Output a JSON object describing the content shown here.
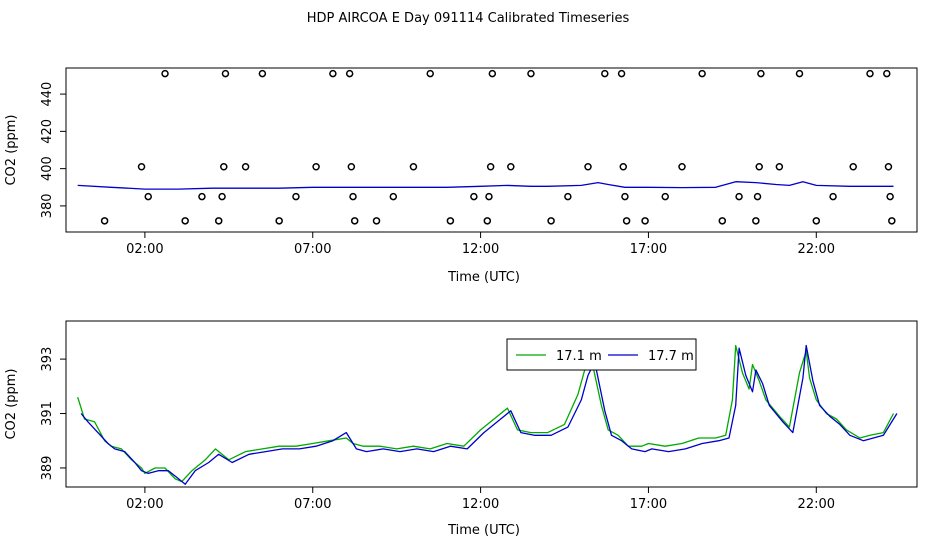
{
  "title": "HDP AIRCOA E  Day 091114  Calibrated Timeseries",
  "chart_data": [
    {
      "type": "scatter",
      "xlabel": "Time (UTC)",
      "ylabel": "CO2 (ppm)",
      "x_ticks": [
        "02:00",
        "07:00",
        "12:00",
        "17:00",
        "22:00"
      ],
      "y_ticks": [
        380,
        400,
        420,
        440
      ],
      "xlim": [
        -0.35,
        25.0
      ],
      "ylim": [
        366,
        454
      ],
      "calibration_points": [
        {
          "x": 0.8,
          "y": 372
        },
        {
          "x": 1.9,
          "y": 401
        },
        {
          "x": 2.1,
          "y": 385
        },
        {
          "x": 2.6,
          "y": 451
        },
        {
          "x": 3.2,
          "y": 372
        },
        {
          "x": 3.7,
          "y": 385
        },
        {
          "x": 4.2,
          "y": 372
        },
        {
          "x": 4.3,
          "y": 385
        },
        {
          "x": 4.35,
          "y": 401
        },
        {
          "x": 4.4,
          "y": 451
        },
        {
          "x": 5.0,
          "y": 401
        },
        {
          "x": 5.5,
          "y": 451
        },
        {
          "x": 6.0,
          "y": 372
        },
        {
          "x": 6.5,
          "y": 385
        },
        {
          "x": 7.1,
          "y": 401
        },
        {
          "x": 7.6,
          "y": 451
        },
        {
          "x": 8.1,
          "y": 451
        },
        {
          "x": 8.15,
          "y": 401
        },
        {
          "x": 8.2,
          "y": 385
        },
        {
          "x": 8.25,
          "y": 372
        },
        {
          "x": 8.9,
          "y": 372
        },
        {
          "x": 9.4,
          "y": 385
        },
        {
          "x": 10.0,
          "y": 401
        },
        {
          "x": 10.5,
          "y": 451
        },
        {
          "x": 11.1,
          "y": 372
        },
        {
          "x": 11.8,
          "y": 385
        },
        {
          "x": 12.2,
          "y": 372
        },
        {
          "x": 12.25,
          "y": 385
        },
        {
          "x": 12.3,
          "y": 401
        },
        {
          "x": 12.35,
          "y": 451
        },
        {
          "x": 12.9,
          "y": 401
        },
        {
          "x": 13.5,
          "y": 451
        },
        {
          "x": 14.1,
          "y": 372
        },
        {
          "x": 14.6,
          "y": 385
        },
        {
          "x": 15.2,
          "y": 401
        },
        {
          "x": 15.7,
          "y": 451
        },
        {
          "x": 16.2,
          "y": 451
        },
        {
          "x": 16.25,
          "y": 401
        },
        {
          "x": 16.3,
          "y": 385
        },
        {
          "x": 16.35,
          "y": 372
        },
        {
          "x": 16.9,
          "y": 372
        },
        {
          "x": 17.5,
          "y": 385
        },
        {
          "x": 18.0,
          "y": 401
        },
        {
          "x": 18.6,
          "y": 451
        },
        {
          "x": 19.2,
          "y": 372
        },
        {
          "x": 19.7,
          "y": 385
        },
        {
          "x": 20.2,
          "y": 372
        },
        {
          "x": 20.25,
          "y": 385
        },
        {
          "x": 20.3,
          "y": 401
        },
        {
          "x": 20.35,
          "y": 451
        },
        {
          "x": 20.9,
          "y": 401
        },
        {
          "x": 21.5,
          "y": 451
        },
        {
          "x": 22.0,
          "y": 372
        },
        {
          "x": 22.5,
          "y": 385
        },
        {
          "x": 23.1,
          "y": 401
        },
        {
          "x": 23.6,
          "y": 451
        },
        {
          "x": 24.1,
          "y": 451
        },
        {
          "x": 24.15,
          "y": 401
        },
        {
          "x": 24.2,
          "y": 385
        },
        {
          "x": 24.25,
          "y": 372
        }
      ],
      "series": [
        {
          "color": "#0000cc",
          "x": [
            0,
            1,
            2,
            3,
            4,
            5,
            6,
            7,
            8,
            9,
            10,
            11,
            12,
            12.8,
            13.5,
            14,
            15,
            15.5,
            15.8,
            16.3,
            17,
            18,
            19,
            19.6,
            20.2,
            20.8,
            21.2,
            21.6,
            22,
            23,
            24.3
          ],
          "y": [
            391,
            390,
            389,
            389,
            389.5,
            389.5,
            389.5,
            390,
            390,
            390,
            390,
            390,
            390.5,
            391,
            390.5,
            390.5,
            391,
            392.5,
            391.5,
            390,
            390,
            389.8,
            390,
            393,
            392.5,
            391.5,
            391,
            393,
            391,
            390.5,
            390.5
          ]
        }
      ]
    },
    {
      "type": "line",
      "xlabel": "Time (UTC)",
      "ylabel": "CO2 (ppm)",
      "x_ticks": [
        "02:00",
        "07:00",
        "12:00",
        "17:00",
        "22:00"
      ],
      "y_ticks": [
        389,
        391,
        393
      ],
      "xlim": [
        -0.35,
        25.0
      ],
      "ylim": [
        388.3,
        394.4
      ],
      "legend_position": "top-center",
      "series": [
        {
          "name": "17.1 m",
          "color": "#00aa00",
          "x": [
            0.0,
            0.2,
            0.5,
            0.8,
            1.0,
            1.3,
            1.6,
            1.9,
            2.0,
            2.3,
            2.6,
            2.9,
            3.1,
            3.4,
            3.8,
            4.1,
            4.5,
            5.0,
            5.5,
            6.0,
            6.5,
            7.0,
            7.5,
            8.0,
            8.2,
            8.5,
            9.0,
            9.5,
            10.0,
            10.5,
            11.0,
            11.5,
            12.0,
            12.5,
            12.8,
            13.1,
            13.5,
            14.0,
            14.5,
            14.9,
            15.1,
            15.3,
            15.6,
            15.8,
            16.1,
            16.4,
            16.8,
            17.0,
            17.5,
            18.0,
            18.5,
            19.0,
            19.3,
            19.5,
            19.6,
            19.8,
            20.0,
            20.1,
            20.3,
            20.5,
            20.9,
            21.2,
            21.5,
            21.7,
            21.8,
            22.0,
            22.3,
            22.6,
            22.9,
            23.3,
            23.6,
            24.0,
            24.3
          ],
          "y": [
            391.6,
            390.8,
            390.7,
            390.0,
            389.8,
            389.7,
            389.3,
            389.0,
            388.8,
            389.0,
            389.0,
            388.6,
            388.5,
            388.9,
            389.3,
            389.7,
            389.3,
            389.6,
            389.7,
            389.8,
            389.8,
            389.9,
            390.0,
            390.1,
            389.9,
            389.8,
            389.8,
            389.7,
            389.8,
            389.7,
            389.9,
            389.8,
            390.4,
            390.9,
            391.2,
            390.4,
            390.3,
            390.3,
            390.6,
            391.7,
            392.6,
            393.0,
            391.3,
            390.4,
            390.2,
            389.8,
            389.8,
            389.9,
            389.8,
            389.9,
            390.1,
            390.1,
            390.2,
            391.5,
            393.5,
            392.5,
            391.9,
            392.8,
            392.2,
            391.5,
            390.9,
            390.5,
            392.5,
            393.3,
            392.3,
            391.5,
            391.0,
            390.8,
            390.4,
            390.1,
            390.2,
            390.3,
            391.0
          ]
        },
        {
          "name": "17.7 m",
          "color": "#0000cc",
          "x": [
            0.1,
            0.3,
            0.6,
            0.9,
            1.1,
            1.4,
            1.7,
            1.9,
            2.1,
            2.4,
            2.7,
            3.0,
            3.2,
            3.5,
            3.9,
            4.2,
            4.6,
            5.1,
            5.6,
            6.1,
            6.6,
            7.1,
            7.6,
            8.0,
            8.3,
            8.6,
            9.1,
            9.6,
            10.1,
            10.6,
            11.1,
            11.6,
            12.1,
            12.6,
            12.9,
            13.2,
            13.6,
            14.1,
            14.6,
            15.0,
            15.2,
            15.4,
            15.7,
            15.9,
            16.2,
            16.5,
            16.9,
            17.1,
            17.6,
            18.1,
            18.6,
            19.1,
            19.4,
            19.6,
            19.7,
            19.9,
            20.1,
            20.2,
            20.4,
            20.6,
            21.0,
            21.3,
            21.6,
            21.7,
            21.9,
            22.1,
            22.4,
            22.7,
            23.0,
            23.4,
            23.7,
            24.0,
            24.4
          ],
          "y": [
            391.0,
            390.7,
            390.3,
            389.9,
            389.7,
            389.6,
            389.2,
            388.9,
            388.8,
            388.9,
            388.9,
            388.6,
            388.4,
            388.9,
            389.2,
            389.5,
            389.2,
            389.5,
            389.6,
            389.7,
            389.7,
            389.8,
            390.0,
            390.3,
            389.7,
            389.6,
            389.7,
            389.6,
            389.7,
            389.6,
            389.8,
            389.7,
            390.3,
            390.8,
            391.1,
            390.3,
            390.2,
            390.2,
            390.5,
            391.5,
            392.4,
            392.9,
            391.1,
            390.2,
            390.0,
            389.7,
            389.6,
            389.7,
            389.6,
            389.7,
            389.9,
            390.0,
            390.1,
            391.3,
            393.4,
            392.4,
            391.8,
            392.6,
            392.1,
            391.3,
            390.7,
            390.3,
            392.3,
            393.5,
            392.2,
            391.3,
            390.9,
            390.6,
            390.2,
            390.0,
            390.1,
            390.2,
            391.0
          ]
        }
      ]
    }
  ]
}
